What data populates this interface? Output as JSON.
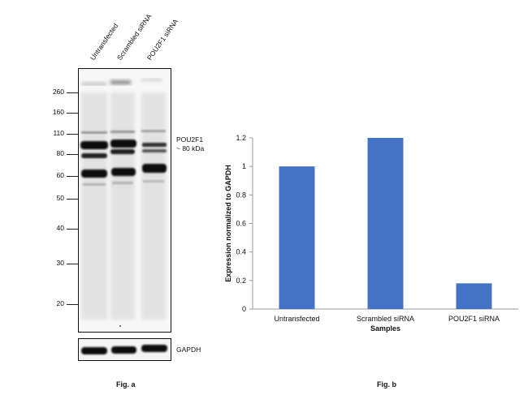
{
  "blot": {
    "lanes": [
      "Untransfected",
      "Scrambled siRNA",
      "POU2F1 siRNA"
    ],
    "mw_markers": [
      "260",
      "160",
      "110",
      "80",
      "60",
      "50",
      "40",
      "30",
      "20"
    ],
    "target_label_line1": "POU2F1",
    "target_label_line2": "~ 80 kDa",
    "loading_control": "GAPDH",
    "caption": "Fig. a"
  },
  "chart_data": {
    "type": "bar",
    "categories": [
      "Untransfected",
      "Scrambled siRNA",
      "POU2F1 siRNA"
    ],
    "values": [
      1.0,
      1.2,
      0.18
    ],
    "title": "",
    "xlabel": "Samples",
    "ylabel": "Expression normalized to GAPDH",
    "ylim": [
      0,
      1.2
    ],
    "yticks": [
      "0",
      "0.2",
      "0.4",
      "0.6",
      "0.8",
      "1",
      "1.2"
    ],
    "bar_color": "#4472c4",
    "grid": false,
    "caption": "Fig. b"
  }
}
